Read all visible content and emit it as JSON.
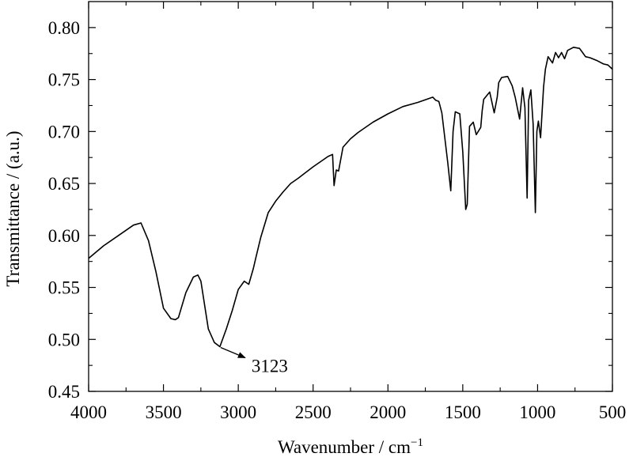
{
  "chart_data": {
    "type": "line",
    "title": "",
    "xlabel": "Wavenumber / cm",
    "xlabel_sup": "−1",
    "ylabel": "Transmittance / (a.u.)",
    "xlim": [
      4000,
      500
    ],
    "ylim": [
      0.45,
      0.825
    ],
    "x_reversed": true,
    "grid": false,
    "legend": "none",
    "line_color": "#000000",
    "x_ticks": [
      4000,
      3500,
      3000,
      2500,
      2000,
      1500,
      1000,
      500
    ],
    "x_tick_labels": [
      "4000",
      "3500",
      "3000",
      "2500",
      "2000",
      "1500",
      "1000",
      "500"
    ],
    "y_ticks": [
      0.45,
      0.5,
      0.55,
      0.6,
      0.65,
      0.7,
      0.75,
      0.8
    ],
    "y_tick_labels": [
      "0.45",
      "0.50",
      "0.55",
      "0.60",
      "0.65",
      "0.70",
      "0.75",
      "0.80"
    ],
    "series": [
      {
        "x": [
          4000,
          3900,
          3800,
          3700,
          3650,
          3600,
          3550,
          3500,
          3450,
          3420,
          3400,
          3350,
          3300,
          3270,
          3250,
          3200,
          3160,
          3123,
          3080,
          3040,
          3000,
          2960,
          2930,
          2900,
          2880,
          2850,
          2800,
          2750,
          2700,
          2650,
          2600,
          2500,
          2400,
          2370,
          2360,
          2345,
          2330,
          2300,
          2250,
          2200,
          2100,
          2000,
          1900,
          1800,
          1700,
          1680,
          1660,
          1640,
          1600,
          1580,
          1565,
          1550,
          1520,
          1500,
          1480,
          1470,
          1455,
          1430,
          1410,
          1380,
          1370,
          1360,
          1320,
          1290,
          1270,
          1260,
          1240,
          1200,
          1170,
          1150,
          1120,
          1100,
          1085,
          1070,
          1060,
          1045,
          1030,
          1015,
          1005,
          995,
          980,
          960,
          948,
          930,
          900,
          880,
          860,
          840,
          820,
          800,
          760,
          720,
          700,
          680,
          650,
          600,
          560,
          530,
          500
        ],
        "y": [
          0.578,
          0.59,
          0.6,
          0.61,
          0.612,
          0.595,
          0.565,
          0.53,
          0.52,
          0.519,
          0.521,
          0.545,
          0.56,
          0.562,
          0.556,
          0.51,
          0.497,
          0.493,
          0.51,
          0.528,
          0.548,
          0.556,
          0.553,
          0.568,
          0.58,
          0.598,
          0.622,
          0.633,
          0.642,
          0.65,
          0.655,
          0.666,
          0.676,
          0.678,
          0.648,
          0.663,
          0.662,
          0.685,
          0.693,
          0.699,
          0.709,
          0.717,
          0.724,
          0.728,
          0.733,
          0.73,
          0.729,
          0.718,
          0.67,
          0.643,
          0.7,
          0.719,
          0.717,
          0.68,
          0.625,
          0.63,
          0.705,
          0.709,
          0.697,
          0.704,
          0.72,
          0.731,
          0.738,
          0.718,
          0.733,
          0.747,
          0.752,
          0.753,
          0.744,
          0.733,
          0.712,
          0.742,
          0.723,
          0.636,
          0.73,
          0.74,
          0.707,
          0.622,
          0.7,
          0.71,
          0.694,
          0.743,
          0.76,
          0.772,
          0.766,
          0.776,
          0.771,
          0.776,
          0.77,
          0.778,
          0.781,
          0.78,
          0.776,
          0.772,
          0.771,
          0.768,
          0.765,
          0.764,
          0.76
        ]
      }
    ],
    "annotations": [
      {
        "text": "3123",
        "x": 3123,
        "y": 0.493,
        "arrow": true
      }
    ]
  }
}
